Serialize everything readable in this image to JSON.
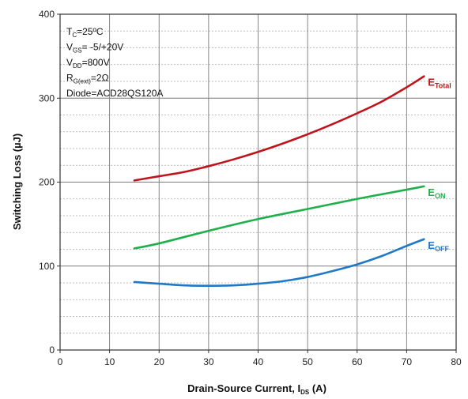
{
  "chart_data": {
    "type": "line",
    "title": "",
    "xlabel": {
      "main": "Drain-Source Current, I",
      "sub": "DS",
      "suffix": " (A)"
    },
    "ylabel": "Switching Loss  (µJ)",
    "xlim": [
      0,
      80
    ],
    "ylim": [
      0,
      400
    ],
    "xticks": [
      0,
      10,
      20,
      30,
      40,
      50,
      60,
      70,
      80
    ],
    "yticks": [
      0,
      100,
      200,
      300,
      400
    ],
    "grid": {
      "major": true,
      "y_minor": 20,
      "x_major": 10
    },
    "conditions": [
      {
        "main": "T",
        "sub": "C",
        "rest": "=25ºC"
      },
      {
        "main": "V",
        "sub": "GS",
        "rest": "= -5/+20V"
      },
      {
        "main": "V",
        "sub": "DD",
        "rest": "=800V"
      },
      {
        "main": "R",
        "sub": "G(ext)",
        "rest": "=2Ω"
      },
      {
        "main": "Diode=ACD28QS120A",
        "sub": "",
        "rest": ""
      }
    ],
    "series": [
      {
        "label_main": "E",
        "label_sub": "Total",
        "color": "#c0141c",
        "x": [
          15,
          20,
          25,
          30,
          35,
          40,
          45,
          50,
          55,
          60,
          65,
          70,
          73.5
        ],
        "y": [
          202,
          207,
          212,
          219,
          227,
          236,
          246,
          257,
          269,
          282,
          296,
          313,
          326
        ]
      },
      {
        "label_main": "E",
        "label_sub": "ON",
        "color": "#1fb04c",
        "x": [
          15,
          20,
          30,
          40,
          50,
          60,
          70,
          73.5
        ],
        "y": [
          121,
          127,
          142,
          156,
          168,
          180,
          191,
          195
        ]
      },
      {
        "label_main": "E",
        "label_sub": "OFF",
        "color": "#1f78c8",
        "x": [
          15,
          20,
          25,
          30,
          35,
          40,
          45,
          50,
          55,
          60,
          65,
          70,
          73.5
        ],
        "y": [
          81,
          79,
          77,
          76.5,
          77,
          79,
          82,
          87,
          94,
          102,
          112,
          124,
          132
        ]
      }
    ]
  }
}
